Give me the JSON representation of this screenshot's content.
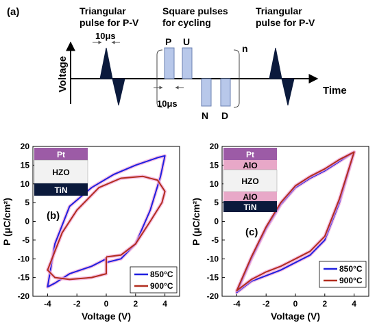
{
  "colors": {
    "blue": "#1f1fe0",
    "red": "#b22d1e",
    "pink_glow": "#f2a6d8",
    "navy": "#0b1a3c",
    "pulse_fill": "#b8c8ea",
    "purple": "#9c5ba6",
    "pink_layer": "#e8a8c8",
    "hzo": "#f2f2f2"
  },
  "panel_a": {
    "label": "(a)",
    "triangular_label_1": [
      "Triangular",
      "pulse for P-V"
    ],
    "square_label": [
      "Square pulses",
      "for cycling"
    ],
    "triangular_label_2": [
      "Triangular",
      "pulse for P-V"
    ],
    "width_label_top": "10μs",
    "width_label_bottom": "10μs",
    "pulse_names": [
      "P",
      "U",
      "N",
      "D"
    ],
    "repeat_label": "n",
    "y_axis_label": "Voltage",
    "x_axis_label": "Time"
  },
  "chart_data": [
    {
      "type": "line",
      "panel_label": "(b)",
      "xlabel": "Voltage (V)",
      "ylabel": "P (μC/cm²)",
      "xlim": [
        -5,
        5
      ],
      "ylim": [
        -20,
        20
      ],
      "x_ticks": [
        "-4",
        "-2",
        "0",
        "2",
        "4"
      ],
      "y_ticks": [
        "20",
        "15",
        "10",
        "5",
        "0",
        "-5",
        "-10",
        "-15",
        "-20"
      ],
      "legend": {
        "position": "bottom-right",
        "entries": [
          "850°C",
          "900°C"
        ]
      },
      "stack": [
        "Pt",
        "HZO",
        "TiN"
      ],
      "series": [
        {
          "name": "850°C",
          "x": [
            0,
            1,
            2,
            3,
            3.7,
            4,
            3.5,
            2,
            0.5,
            -1,
            -2.5,
            -3.5,
            -4,
            -3.5,
            -2.5,
            -1,
            0,
            0
          ],
          "y": [
            -11,
            -10,
            -6,
            3,
            12,
            17.5,
            17,
            15,
            12.5,
            9,
            4,
            -6,
            -17.5,
            -16.5,
            -14,
            -12,
            -10,
            -11
          ]
        },
        {
          "name": "900°C",
          "x": [
            0,
            1,
            2,
            3,
            3.8,
            4,
            3.5,
            2.5,
            1,
            -0.5,
            -2,
            -3,
            -4,
            -3.5,
            -2.5,
            -1,
            0,
            0,
            0
          ],
          "y": [
            -9.5,
            -9,
            -6,
            0,
            5,
            8,
            11,
            12,
            11.5,
            9,
            3,
            -3,
            -13,
            -15,
            -15.5,
            -15,
            -14,
            -12.5,
            -9.5
          ]
        }
      ]
    },
    {
      "type": "line",
      "panel_label": "(c)",
      "xlabel": "Voltage (V)",
      "ylabel": "P (μC/cm²)",
      "xlim": [
        -5,
        5
      ],
      "ylim": [
        -20,
        20
      ],
      "x_ticks": [
        "-4",
        "-2",
        "0",
        "2",
        "4"
      ],
      "y_ticks": [
        "20",
        "15",
        "10",
        "5",
        "0",
        "-5",
        "-10",
        "-15",
        "-20"
      ],
      "legend": {
        "position": "bottom-right",
        "entries": [
          "850°C",
          "900°C"
        ]
      },
      "stack": [
        "Pt",
        "AlO",
        "HZO",
        "AlO",
        "TiN"
      ],
      "series": [
        {
          "name": "850°C",
          "x": [
            0,
            1,
            2,
            2.5,
            3,
            4,
            3,
            2,
            1,
            0,
            -1,
            -2,
            -2.5,
            -3,
            -4,
            -3,
            -2,
            -1,
            0,
            0
          ],
          "y": [
            -11,
            -9,
            -5,
            0,
            5,
            18.5,
            16,
            13.5,
            11.5,
            9,
            4.5,
            -2,
            -6,
            -10,
            -19,
            -16,
            -14.5,
            -13,
            -11,
            -11
          ]
        },
        {
          "name": "900°C",
          "x": [
            0,
            1,
            2,
            2.5,
            3,
            4,
            3,
            2,
            1,
            0,
            -1,
            -2,
            -2.5,
            -3,
            -4,
            -3,
            -2,
            -1,
            0,
            0
          ],
          "y": [
            -10,
            -8,
            -4,
            1,
            6,
            18.5,
            16.5,
            14,
            12,
            9.5,
            5,
            -1.5,
            -5.5,
            -9.5,
            -18.5,
            -15.5,
            -13.5,
            -12,
            -10,
            -10
          ]
        }
      ]
    }
  ]
}
